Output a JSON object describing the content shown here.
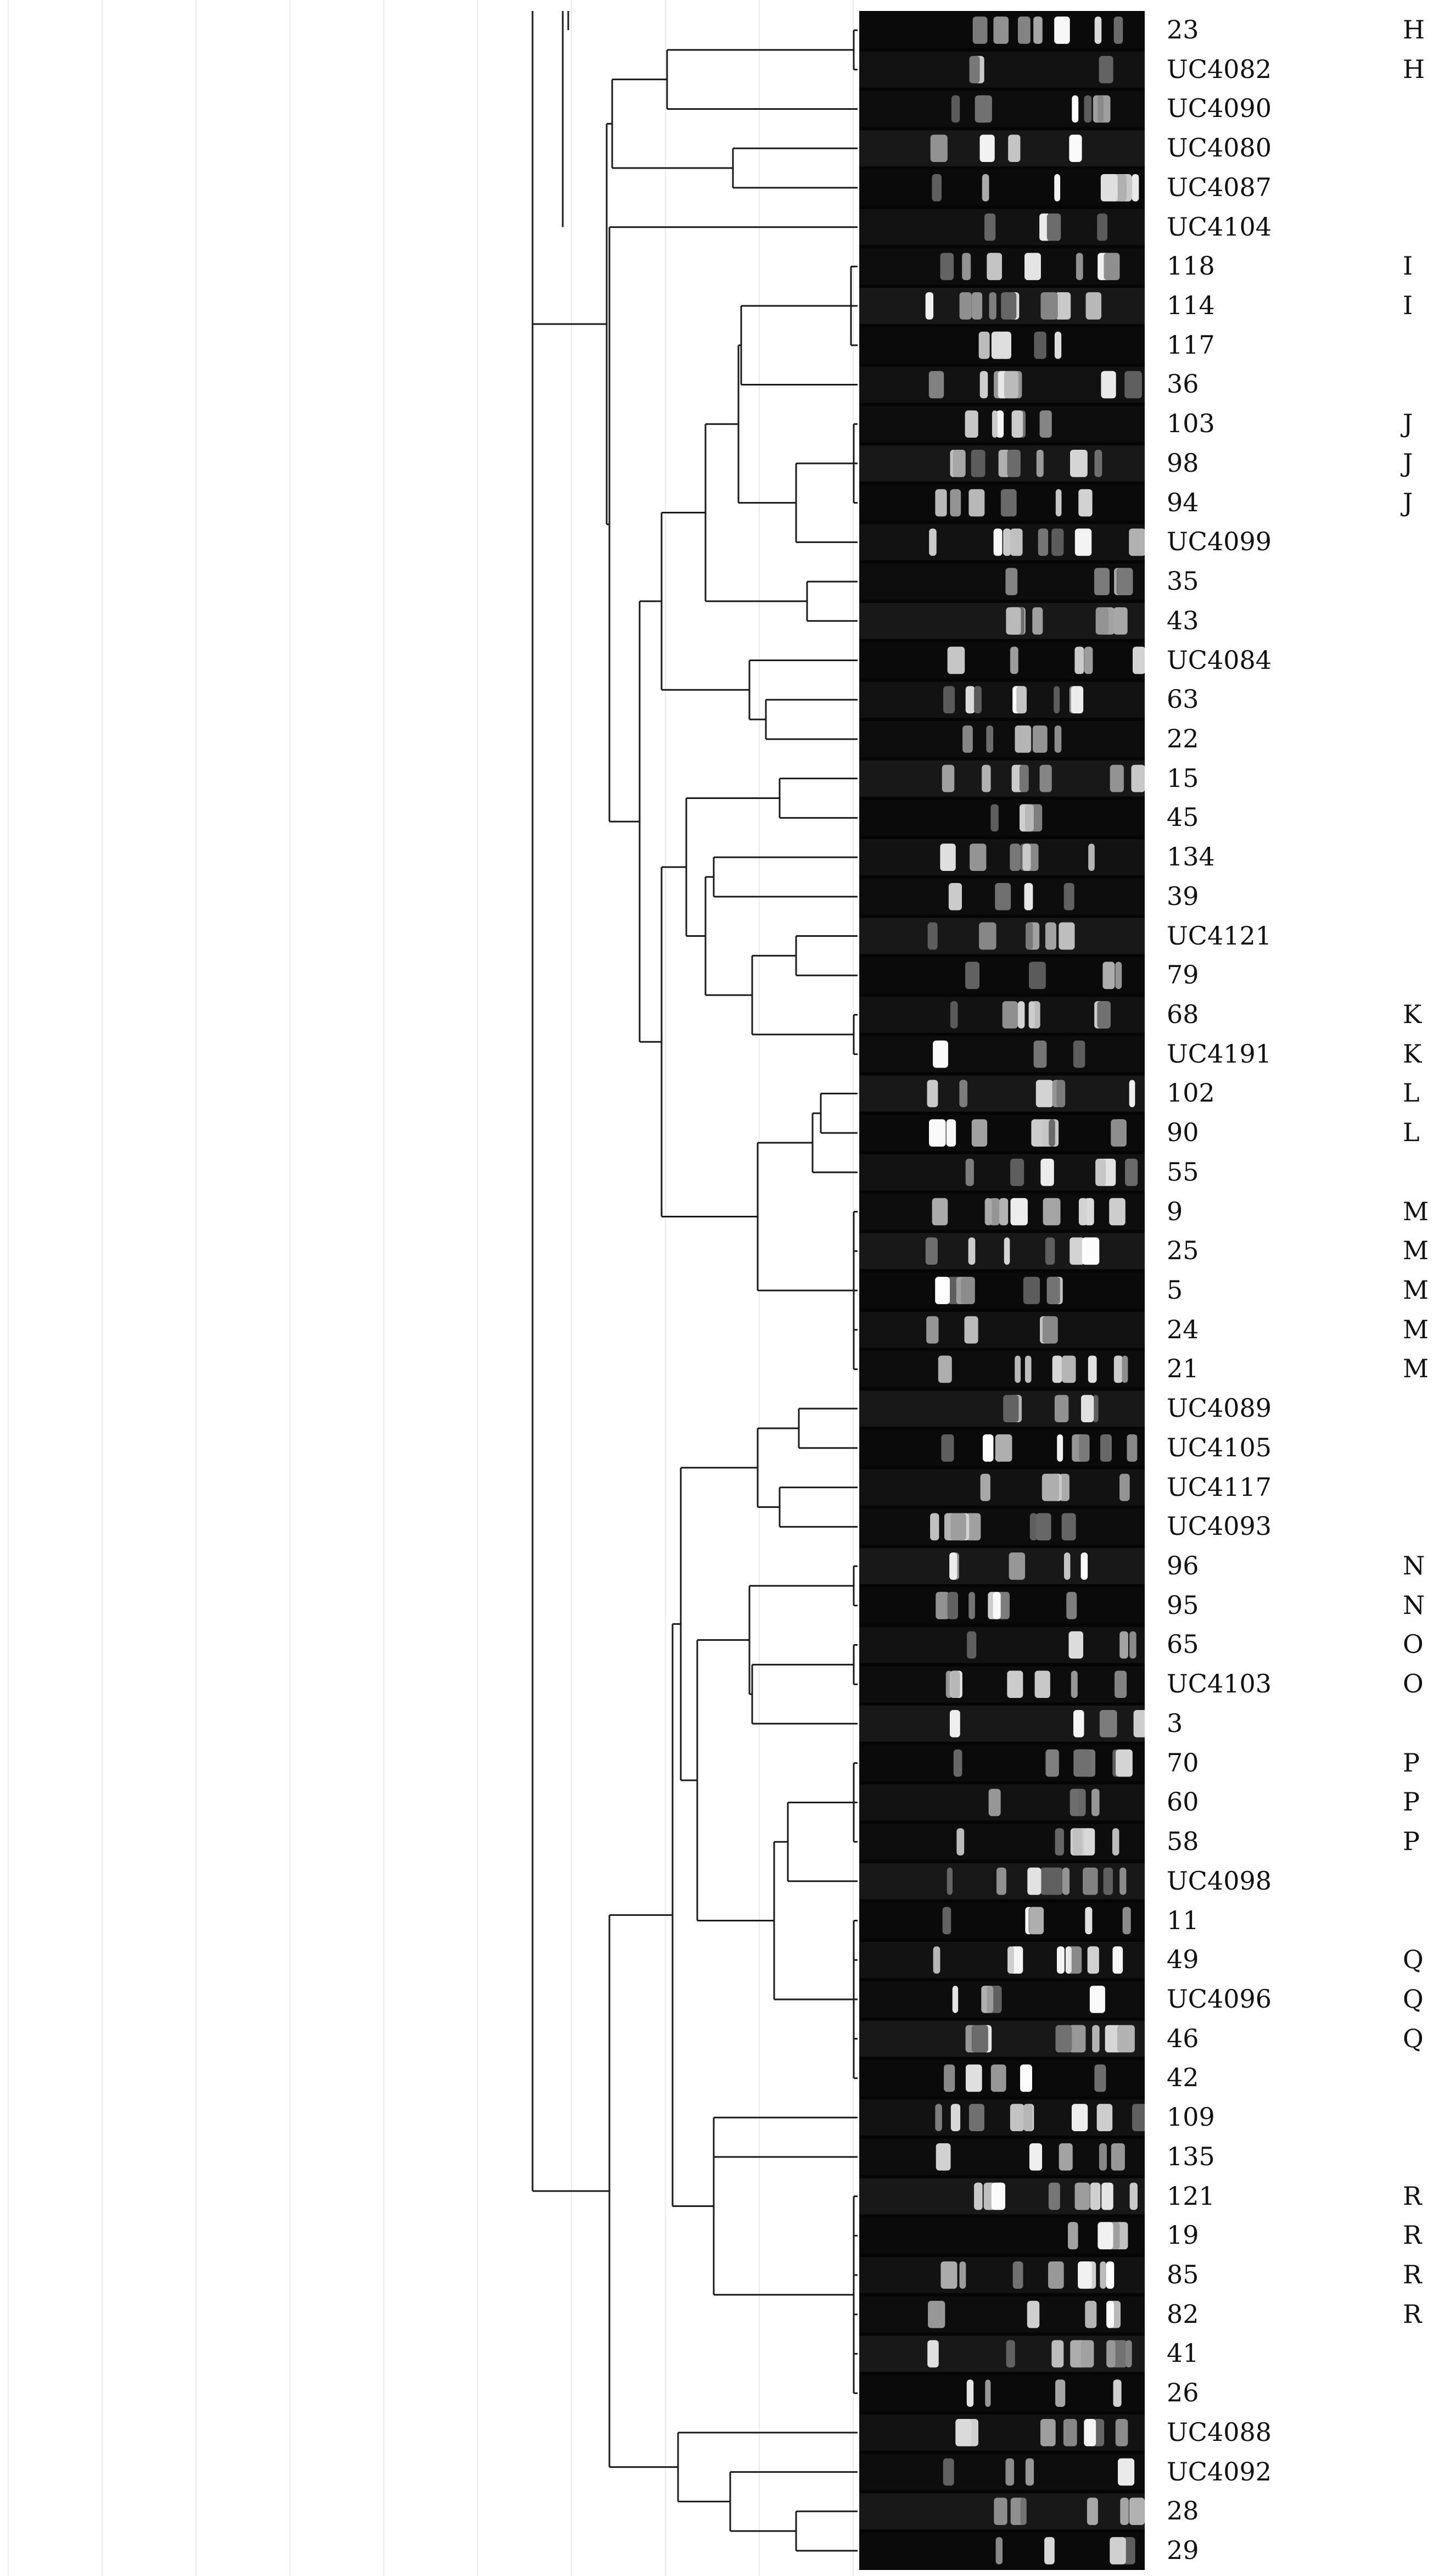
{
  "colors": {
    "background": "#ffffff",
    "gridline": "#ececec",
    "branch": "#1a1a1a",
    "gel": "#050505",
    "text": "#111111"
  },
  "rows": [
    {
      "label": "23",
      "group": "H"
    },
    {
      "label": "UC4082",
      "group": "H"
    },
    {
      "label": "UC4090",
      "group": ""
    },
    {
      "label": "UC4080",
      "group": ""
    },
    {
      "label": "UC4087",
      "group": ""
    },
    {
      "label": "UC4104",
      "group": ""
    },
    {
      "label": "118",
      "group": "I"
    },
    {
      "label": "114",
      "group": "I"
    },
    {
      "label": "117",
      "group": ""
    },
    {
      "label": "36",
      "group": ""
    },
    {
      "label": "103",
      "group": "J"
    },
    {
      "label": "98",
      "group": "J"
    },
    {
      "label": "94",
      "group": "J"
    },
    {
      "label": "UC4099",
      "group": ""
    },
    {
      "label": "35",
      "group": ""
    },
    {
      "label": "43",
      "group": ""
    },
    {
      "label": "UC4084",
      "group": ""
    },
    {
      "label": "63",
      "group": ""
    },
    {
      "label": "22",
      "group": ""
    },
    {
      "label": "15",
      "group": ""
    },
    {
      "label": "45",
      "group": ""
    },
    {
      "label": "134",
      "group": ""
    },
    {
      "label": "39",
      "group": ""
    },
    {
      "label": "UC4121",
      "group": ""
    },
    {
      "label": "79",
      "group": ""
    },
    {
      "label": "68",
      "group": "K"
    },
    {
      "label": "UC4191",
      "group": "K"
    },
    {
      "label": "102",
      "group": "L"
    },
    {
      "label": "90",
      "group": "L"
    },
    {
      "label": "55",
      "group": ""
    },
    {
      "label": "9",
      "group": "M"
    },
    {
      "label": "25",
      "group": "M"
    },
    {
      "label": "5",
      "group": "M"
    },
    {
      "label": "24",
      "group": "M"
    },
    {
      "label": "21",
      "group": "M"
    },
    {
      "label": "UC4089",
      "group": ""
    },
    {
      "label": "UC4105",
      "group": ""
    },
    {
      "label": "UC4117",
      "group": ""
    },
    {
      "label": "UC4093",
      "group": ""
    },
    {
      "label": "96",
      "group": "N"
    },
    {
      "label": "95",
      "group": "N"
    },
    {
      "label": "65",
      "group": "O"
    },
    {
      "label": "UC4103",
      "group": "O"
    },
    {
      "label": "3",
      "group": ""
    },
    {
      "label": "70",
      "group": "P"
    },
    {
      "label": "60",
      "group": "P"
    },
    {
      "label": "58",
      "group": "P"
    },
    {
      "label": "UC4098",
      "group": ""
    },
    {
      "label": "11",
      "group": ""
    },
    {
      "label": "49",
      "group": "Q"
    },
    {
      "label": "UC4096",
      "group": "Q"
    },
    {
      "label": "46",
      "group": "Q"
    },
    {
      "label": "42",
      "group": ""
    },
    {
      "label": "109",
      "group": ""
    },
    {
      "label": "135",
      "group": ""
    },
    {
      "label": "121",
      "group": "R"
    },
    {
      "label": "19",
      "group": "R"
    },
    {
      "label": "85",
      "group": "R"
    },
    {
      "label": "82",
      "group": "R"
    },
    {
      "label": "41",
      "group": ""
    },
    {
      "label": "26",
      "group": ""
    },
    {
      "label": "UC4088",
      "group": ""
    },
    {
      "label": "UC4092",
      "group": ""
    },
    {
      "label": "28",
      "group": ""
    },
    {
      "label": "29",
      "group": ""
    }
  ]
}
